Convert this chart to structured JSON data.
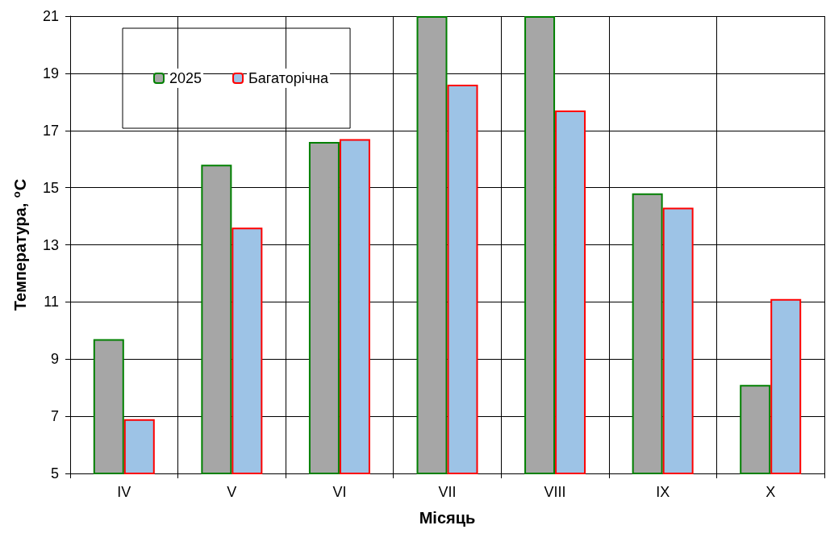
{
  "chart_data": {
    "type": "bar",
    "xlabel": "Місяць",
    "ylabel": "Температура, $^{o}$C",
    "categories": [
      "IV",
      "V",
      "VI",
      "VII",
      "VIII",
      "IX",
      "X"
    ],
    "series": [
      {
        "name": "2025",
        "color": "#a6a6a6",
        "values": [
          9.7,
          15.8,
          16.6,
          21,
          21,
          14.8,
          8.1
        ]
      },
      {
        "name": "Багаторічна",
        "color": "#9dc3e6",
        "values": [
          6.9,
          13.6,
          16.7,
          18.6,
          17.7,
          14.3,
          11.1
        ]
      }
    ],
    "ylim": [
      5,
      21
    ],
    "yticks": [
      5,
      7,
      9,
      11,
      13,
      15,
      17,
      19,
      21
    ],
    "grid": true,
    "legend": "top left"
  }
}
